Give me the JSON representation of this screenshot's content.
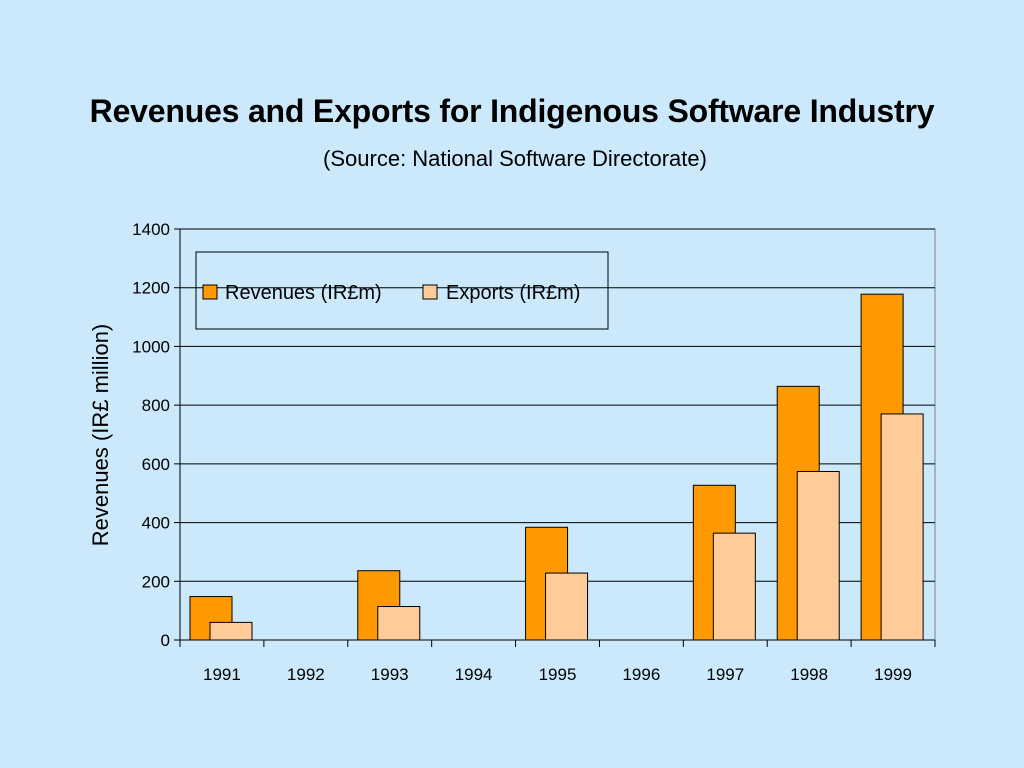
{
  "header": {
    "title": "Revenues and Exports for Indigenous Software Industry",
    "subtitle": "(Source: National Software Directorate)"
  },
  "chart_data": {
    "type": "bar",
    "categories": [
      "1991",
      "1992",
      "1993",
      "1994",
      "1995",
      "1996",
      "1997",
      "1998",
      "1999"
    ],
    "series": [
      {
        "name": "Revenues (IR£m)",
        "color": "#ff9900",
        "values": [
          148,
          null,
          236,
          null,
          384,
          null,
          527,
          864,
          1178
        ]
      },
      {
        "name": "Exports (IR£m)",
        "color": "#ffcc99",
        "values": [
          60,
          null,
          114,
          null,
          228,
          null,
          364,
          574,
          770
        ]
      }
    ],
    "ylabel": "Revenues (IR£ million)",
    "xlabel": "",
    "ylim": [
      0,
      1400
    ],
    "yticks": [
      0,
      200,
      400,
      600,
      800,
      1000,
      1200,
      1400
    ],
    "grid": true,
    "legend_position": "top-left"
  }
}
